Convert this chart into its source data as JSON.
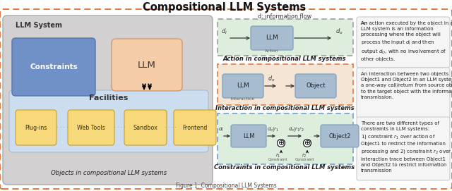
{
  "title": "Compositional LLM Systems",
  "title_fontsize": 10.5,
  "fig_bg": "#ffffff",
  "outer_border_color": "#e07030",
  "lp_bg": "#d2d0d0",
  "lp_border": "#aaaaaa",
  "lp_label": "LLM System",
  "constraints_fill": "#7090c8",
  "constraints_border": "#5577aa",
  "llm_fill": "#f5cca8",
  "llm_border": "#cc9977",
  "facilities_fill": "#ccddf0",
  "facilities_border": "#aabbcc",
  "tools_fill": "#f7d87a",
  "tools_border": "#c8a020",
  "tools": [
    "Plug-ins",
    "Web Tools",
    "Sandbox",
    "Frontend"
  ],
  "action_fill": "#ddeedd",
  "action_border": "#999999",
  "interaction_fill": "#f5e5d5",
  "interaction_border": "#e07030",
  "constraint_fill": "#ddeedd",
  "constraint_border": "#6699cc",
  "node_fill": "#a8bcd0",
  "node_border": "#7799bb",
  "rp_fill": "#f5f5f5",
  "rp_border": "#cccccc",
  "caption_color": "#222222",
  "text_color": "#333333"
}
